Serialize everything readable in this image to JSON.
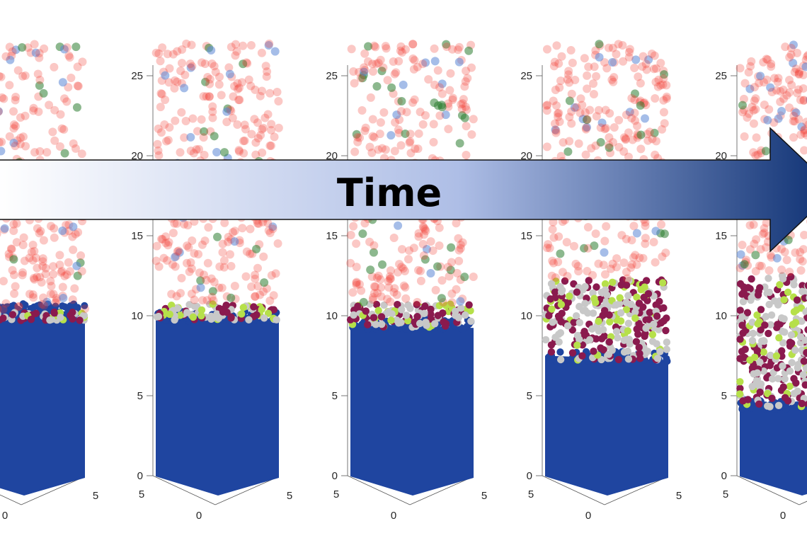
{
  "figure": {
    "arrow_label": "Time"
  },
  "colors": {
    "bed": "#1f45a0",
    "free_particles": "#f0392e",
    "green_particles": "#2e7d32",
    "blue_particles": "#5b86d6",
    "lime_particles": "#b6e04a",
    "grey_particles": "#c8c8c8",
    "maroon_particles": "#8a1a4e",
    "arrow_start": "#ffffff",
    "arrow_end": "#0c2f72"
  },
  "chart_data": [
    {
      "type": "scatter",
      "panel": 1,
      "z_ticks": [],
      "x_ticks": [
        "0"
      ],
      "y_ticks": [
        "5",
        "0",
        "5"
      ],
      "zlim": [
        0,
        27
      ],
      "bed_height": 10.5,
      "mixed_layer_top": 10.5,
      "cloud_top": 27
    },
    {
      "type": "scatter",
      "panel": 2,
      "z_ticks": [
        "0",
        "5",
        "10",
        "15",
        "20",
        "25"
      ],
      "x_ticks": [
        "0"
      ],
      "y_ticks": [
        "5",
        "5"
      ],
      "zlim": [
        0,
        27
      ],
      "bed_height": 10.0,
      "mixed_layer_top": 11.0,
      "cloud_top": 27
    },
    {
      "type": "scatter",
      "panel": 3,
      "z_ticks": [
        "0",
        "5",
        "10",
        "15",
        "20",
        "25"
      ],
      "x_ticks": [
        "0"
      ],
      "y_ticks": [
        "5",
        "5"
      ],
      "zlim": [
        0,
        27
      ],
      "bed_height": 9.5,
      "mixed_layer_top": 11.0,
      "cloud_top": 27
    },
    {
      "type": "scatter",
      "panel": 4,
      "z_ticks": [
        "0",
        "5",
        "10",
        "15",
        "20",
        "25"
      ],
      "x_ticks": [
        "0"
      ],
      "y_ticks": [
        "5",
        "5"
      ],
      "zlim": [
        0,
        27
      ],
      "bed_height": 7.5,
      "mixed_layer_top": 12.5,
      "cloud_top": 27
    },
    {
      "type": "scatter",
      "panel": 5,
      "z_ticks": [
        "0",
        "5",
        "10",
        "15",
        "20",
        "25"
      ],
      "x_ticks": [
        "0"
      ],
      "y_ticks": [
        "5"
      ],
      "zlim": [
        0,
        27
      ],
      "bed_height": 4.5,
      "mixed_layer_top": 12.8,
      "cloud_top": 27
    }
  ]
}
